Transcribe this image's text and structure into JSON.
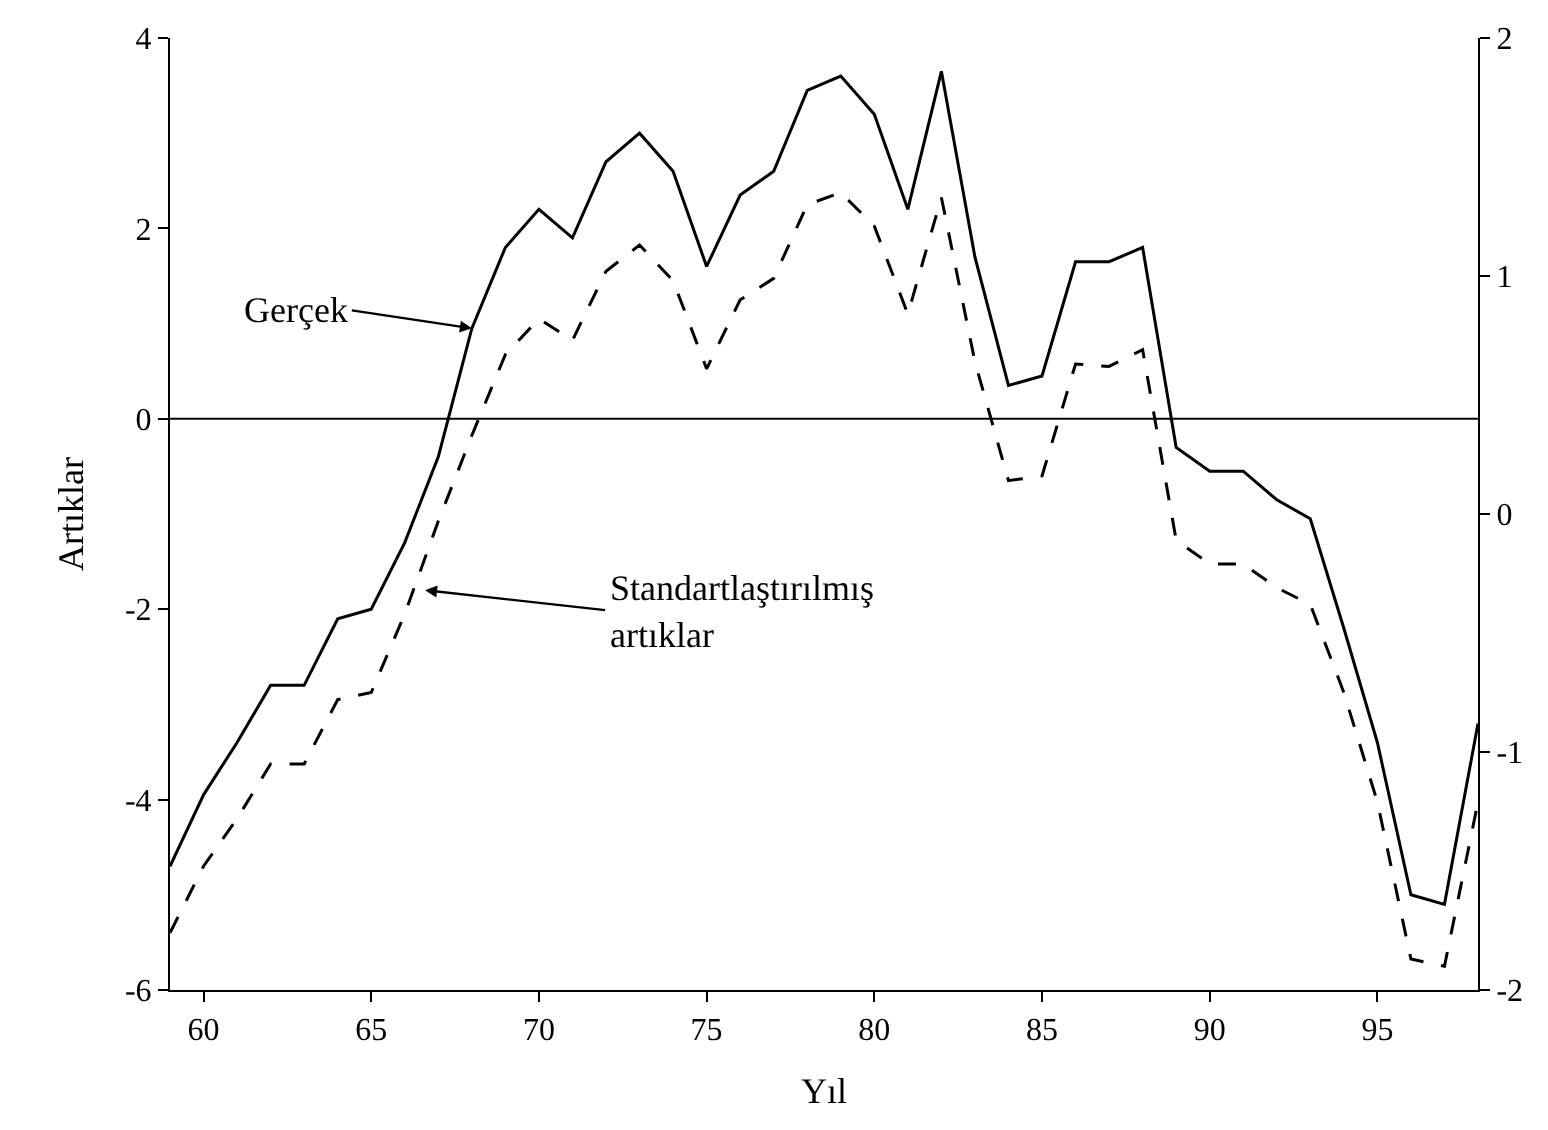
{
  "chart_data": {
    "type": "line",
    "xlabel": "Yıl",
    "ylabel": "Artıklar",
    "x": [
      59,
      60,
      61,
      62,
      63,
      64,
      65,
      66,
      67,
      68,
      69,
      70,
      71,
      72,
      73,
      74,
      75,
      76,
      77,
      78,
      79,
      80,
      81,
      82,
      83,
      84,
      85,
      86,
      87,
      88,
      89,
      90,
      91,
      92,
      93,
      94,
      95,
      96,
      97,
      98
    ],
    "series": [
      {
        "color": "#000000",
        "line_style": "solid",
        "values": [
          -4.7,
          -3.95,
          -3.4,
          -2.8,
          -2.8,
          -2.1,
          -2.0,
          -1.3,
          -0.4,
          0.95,
          1.8,
          2.2,
          1.9,
          2.7,
          3.0,
          2.6,
          1.6,
          2.35,
          2.6,
          3.45,
          3.6,
          3.2,
          2.2,
          3.65,
          1.7,
          0.35,
          0.45,
          1.65,
          1.65,
          1.8,
          -0.3,
          -0.55,
          -0.55,
          -0.85,
          -1.05,
          -2.2,
          -3.4,
          -5.0,
          -5.1,
          -3.2
        ]
      },
      {
        "color": "#000000",
        "line_style": "dashed",
        "axis": "y2",
        "values": [
          -1.76,
          -1.48,
          -1.28,
          -1.05,
          -1.05,
          -0.78,
          -0.75,
          -0.42,
          -0.03,
          0.33,
          0.67,
          0.82,
          0.73,
          1.02,
          1.13,
          0.98,
          0.61,
          0.9,
          0.99,
          1.3,
          1.35,
          1.21,
          0.84,
          1.33,
          0.64,
          0.14,
          0.16,
          0.63,
          0.62,
          0.69,
          -0.11,
          -0.21,
          -0.21,
          -0.31,
          -0.38,
          -0.75,
          -1.21,
          -1.87,
          -1.9,
          -1.21
        ]
      }
    ],
    "xlim": [
      59,
      98
    ],
    "xticks": [
      60,
      65,
      70,
      75,
      80,
      85,
      90,
      95
    ],
    "ylim": [
      -6,
      4
    ],
    "yticks": [
      -6,
      -4,
      -2,
      0,
      2,
      4
    ],
    "y2lim": [
      -2,
      2
    ],
    "y2ticks": [
      -2,
      -1,
      0,
      1,
      2
    ],
    "ref_lines": [
      {
        "axis": "y",
        "value": 0,
        "color": "#000000"
      }
    ],
    "annotations": [
      {
        "text": "Gerçek",
        "x": 68,
        "y": 0.95
      },
      "Standartlaştırılmış\nartıklar"
    ],
    "marker": "none"
  }
}
